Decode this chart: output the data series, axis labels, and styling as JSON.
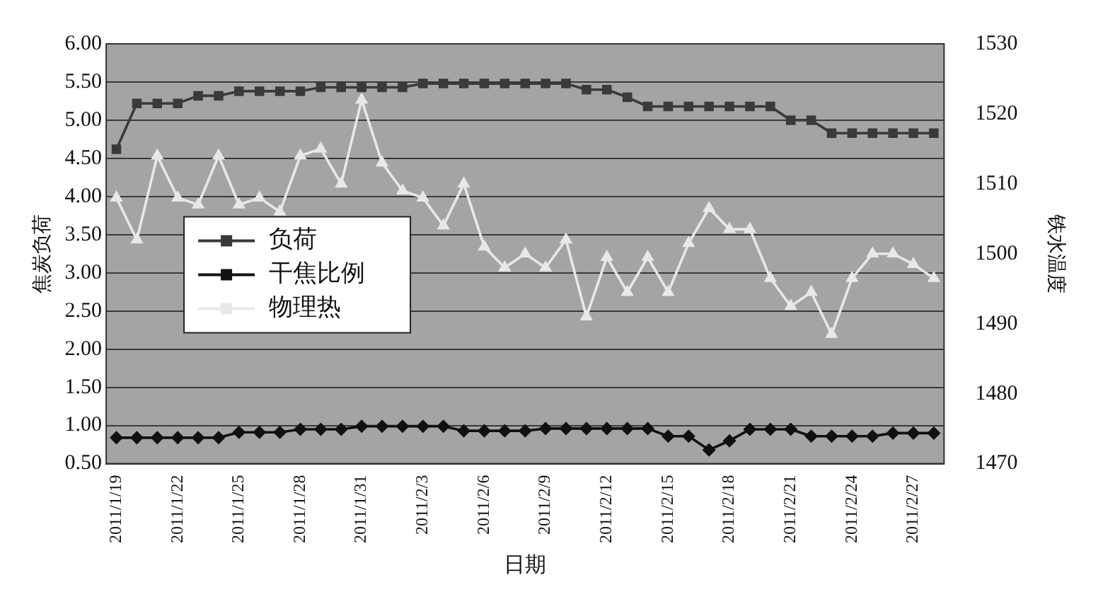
{
  "chart_data": {
    "type": "line",
    "xlabel": "日期",
    "ylabel": "焦炭负荷",
    "y2label": "铁水温度",
    "categories": [
      "2011/1/19",
      null,
      null,
      "2011/1/22",
      null,
      null,
      "2011/1/25",
      null,
      null,
      "2011/1/28",
      null,
      null,
      "2011/1/31",
      null,
      null,
      "2011/2/3",
      null,
      null,
      "2011/2/6",
      null,
      null,
      "2011/2/9",
      null,
      null,
      "2011/2/12",
      null,
      null,
      "2011/2/15",
      null,
      null,
      "2011/2/18",
      null,
      null,
      "2011/2/21",
      null,
      null,
      "2011/2/24",
      null,
      null,
      "2011/2/27",
      null
    ],
    "series": [
      {
        "name": "负荷",
        "color": "#3a3a3a",
        "marker": "square",
        "values": [
          4.62,
          5.22,
          5.22,
          5.22,
          5.32,
          5.32,
          5.38,
          5.38,
          5.38,
          5.38,
          5.43,
          5.43,
          5.43,
          5.43,
          5.43,
          5.48,
          5.48,
          5.48,
          5.48,
          5.48,
          5.48,
          5.48,
          5.48,
          5.4,
          5.4,
          5.3,
          5.18,
          5.18,
          5.18,
          5.18,
          5.18,
          5.18,
          5.18,
          5.0,
          5.0,
          4.83,
          4.83,
          4.83,
          4.83,
          4.83,
          4.83
        ]
      },
      {
        "name": "干焦比例",
        "color": "#111111",
        "marker": "diamond",
        "values": [
          0.84,
          0.84,
          0.84,
          0.84,
          0.84,
          0.84,
          0.91,
          0.91,
          0.91,
          0.95,
          0.95,
          0.95,
          0.99,
          0.99,
          0.99,
          0.99,
          0.99,
          0.93,
          0.93,
          0.93,
          0.93,
          0.96,
          0.96,
          0.96,
          0.96,
          0.96,
          0.96,
          0.86,
          0.86,
          0.68,
          0.8,
          0.95,
          0.95,
          0.95,
          0.86,
          0.86,
          0.86,
          0.86,
          0.9,
          0.9,
          0.9
        ]
      },
      {
        "name": "物理热",
        "color": "#e8e8e8",
        "marker": "triangle",
        "axis": "y2",
        "values": [
          1508,
          1502,
          1514,
          1508,
          1507,
          1514,
          1507,
          1508,
          1506,
          1514,
          1515,
          1510,
          1522,
          1513,
          1509,
          1508,
          1504,
          1510,
          1501,
          1498,
          1500,
          1498,
          1502,
          1491,
          1499.5,
          1494.5,
          1499.5,
          1494.5,
          1501.5,
          1506.5,
          1503.5,
          1503.5,
          1496.5,
          1492.5,
          1494.5,
          1488.5,
          1496.5,
          1500,
          1500,
          1498.5,
          1496.5
        ]
      }
    ],
    "ylim": [
      0.5,
      6
    ],
    "yticks": [
      {
        "value": 0.5,
        "label": "0.50"
      },
      {
        "value": 1,
        "label": "1.00"
      },
      {
        "value": 1.5,
        "label": "1.50"
      },
      {
        "value": 2,
        "label": "2.00"
      },
      {
        "value": 2.5,
        "label": "2.50"
      },
      {
        "value": 3,
        "label": "3.00"
      },
      {
        "value": 3.5,
        "label": "3.50"
      },
      {
        "value": 4,
        "label": "4.00"
      },
      {
        "value": 4.5,
        "label": "4.50"
      },
      {
        "value": 5,
        "label": "5.00"
      },
      {
        "value": 5.5,
        "label": "5.50"
      },
      {
        "value": 6,
        "label": "6.00"
      }
    ],
    "y2lim": [
      1470,
      1530
    ],
    "y2ticks": [
      1470,
      1480,
      1490,
      1500,
      1510,
      1520,
      1530
    ],
    "grid": "y",
    "legend": "left",
    "line_style": "solid"
  }
}
